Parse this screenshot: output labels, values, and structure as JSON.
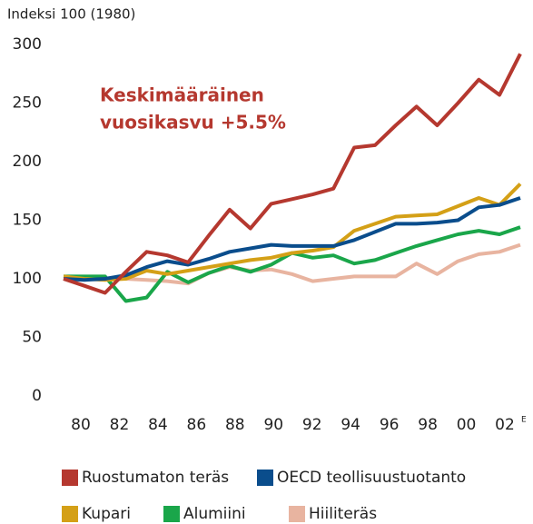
{
  "chart_data": {
    "type": "line",
    "ylabel": "Indeksi 100 (1980)",
    "annotation": [
      "Keskimääräinen",
      "vuosikasvu +5.5%"
    ],
    "annotation_color": "#b5382f",
    "categories": [
      "80",
      null,
      "82",
      null,
      "84",
      null,
      "86",
      null,
      "88",
      null,
      "90",
      null,
      "92",
      null,
      "94",
      null,
      "96",
      null,
      "98",
      null,
      "00",
      null,
      "02"
    ],
    "category_note": "E",
    "ylim": [
      0,
      300
    ],
    "yticks": [
      0,
      50,
      100,
      150,
      200,
      250,
      300
    ],
    "grid": false,
    "series": [
      {
        "name": "Ruostumaton teräs",
        "color": "#b5382f",
        "values": [
          100,
          94,
          88,
          106,
          123,
          120,
          114,
          137,
          159,
          143,
          164,
          168,
          172,
          177,
          212,
          214,
          231,
          247,
          231,
          250,
          270,
          257,
          292
        ]
      },
      {
        "name": "OECD teollisuustuotanto",
        "color": "#0a4d8c",
        "values": [
          100,
          99,
          100,
          103,
          110,
          115,
          112,
          117,
          123,
          126,
          129,
          128,
          128,
          128,
          133,
          140,
          147,
          147,
          148,
          150,
          161,
          163,
          169
        ]
      },
      {
        "name": "Kupari",
        "color": "#d4a017",
        "values": [
          102,
          100,
          99,
          100,
          107,
          104,
          107,
          110,
          113,
          116,
          118,
          122,
          124,
          127,
          141,
          147,
          153,
          154,
          155,
          162,
          169,
          163,
          181
        ]
      },
      {
        "name": "Alumiini",
        "color": "#1aa64a",
        "values": [
          102,
          102,
          102,
          81,
          84,
          106,
          97,
          105,
          111,
          106,
          112,
          122,
          118,
          120,
          113,
          116,
          122,
          128,
          133,
          138,
          141,
          138,
          144
        ]
      },
      {
        "name": "Hiiliteräs",
        "color": "#e8b4a0",
        "values": [
          101,
          101,
          100,
          100,
          99,
          98,
          96,
          105,
          110,
          107,
          108,
          104,
          98,
          100,
          102,
          102,
          102,
          113,
          104,
          115,
          121,
          123,
          129
        ]
      }
    ]
  }
}
